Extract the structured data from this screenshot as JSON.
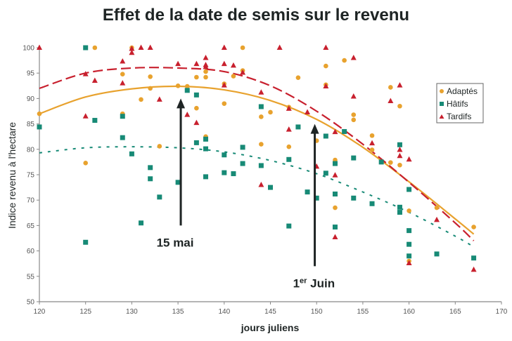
{
  "chart_data": {
    "type": "scatter",
    "title": "Effet de la date de semis sur le revenu",
    "xlabel": "jours juliens",
    "ylabel": "Indice revenu à l'hectare",
    "xlim": [
      120,
      170
    ],
    "ylim": [
      50,
      100
    ],
    "xticks": [
      "120",
      "125",
      "130",
      "135",
      "140",
      "145",
      "150",
      "155",
      "160",
      "165",
      "170"
    ],
    "yticks": [
      "50",
      "55",
      "60",
      "65",
      "70",
      "75",
      "80",
      "85",
      "90",
      "95",
      "100"
    ],
    "grid": false,
    "legend_position": "right",
    "series": [
      {
        "name": "Adaptés",
        "marker": "circle",
        "color": "#e8a22e",
        "points": [
          [
            120,
            87
          ],
          [
            125,
            77.3
          ],
          [
            126,
            100
          ],
          [
            129,
            87
          ],
          [
            129,
            94.8
          ],
          [
            130,
            100
          ],
          [
            131,
            89.8
          ],
          [
            132,
            94.3
          ],
          [
            132,
            92
          ],
          [
            133,
            80.6
          ],
          [
            135,
            92.5
          ],
          [
            136,
            92.4
          ],
          [
            137,
            88.1
          ],
          [
            137,
            94.2
          ],
          [
            138,
            82.5
          ],
          [
            138,
            94.2
          ],
          [
            138,
            95.3
          ],
          [
            140,
            89
          ],
          [
            140,
            92.9
          ],
          [
            141,
            94.4
          ],
          [
            142,
            100
          ],
          [
            142,
            95.5
          ],
          [
            144,
            81
          ],
          [
            144,
            86.4
          ],
          [
            145,
            87.3
          ],
          [
            147,
            80.5
          ],
          [
            147,
            88.3
          ],
          [
            148,
            94.1
          ],
          [
            150,
            81.7
          ],
          [
            151,
            92.7
          ],
          [
            151,
            96.4
          ],
          [
            152,
            77.9
          ],
          [
            152,
            68.5
          ],
          [
            153,
            97.5
          ],
          [
            154,
            85.8
          ],
          [
            154,
            86.8
          ],
          [
            156,
            79.9
          ],
          [
            156,
            82.7
          ],
          [
            158,
            92.2
          ],
          [
            158,
            77.4
          ],
          [
            159,
            88.5
          ],
          [
            159,
            76.9
          ],
          [
            160,
            67.9
          ],
          [
            160,
            58
          ],
          [
            163,
            68.5
          ],
          [
            167,
            64.7
          ]
        ]
      },
      {
        "name": "Hâtifs",
        "marker": "square",
        "color": "#178a76",
        "points": [
          [
            120,
            84.4
          ],
          [
            125,
            100
          ],
          [
            125,
            61.7
          ],
          [
            126,
            85.7
          ],
          [
            129,
            86.5
          ],
          [
            129,
            82.3
          ],
          [
            130,
            79.1
          ],
          [
            131,
            65.5
          ],
          [
            132,
            76.4
          ],
          [
            132,
            74.2
          ],
          [
            133,
            70.6
          ],
          [
            135,
            73.5
          ],
          [
            136,
            91.6
          ],
          [
            137,
            90.7
          ],
          [
            137,
            81.3
          ],
          [
            138,
            82
          ],
          [
            138,
            80.1
          ],
          [
            138,
            74.6
          ],
          [
            140,
            78.9
          ],
          [
            140,
            75.4
          ],
          [
            141,
            75.2
          ],
          [
            142,
            80.4
          ],
          [
            142,
            77.2
          ],
          [
            144,
            88.4
          ],
          [
            144,
            76.8
          ],
          [
            145,
            72.5
          ],
          [
            147,
            78
          ],
          [
            147,
            64.9
          ],
          [
            148,
            84.4
          ],
          [
            149,
            71.6
          ],
          [
            150,
            70.4
          ],
          [
            151,
            75.3
          ],
          [
            151,
            82.6
          ],
          [
            152,
            77.2
          ],
          [
            152,
            71.2
          ],
          [
            152,
            64.7
          ],
          [
            153,
            83.5
          ],
          [
            154,
            70.4
          ],
          [
            154,
            78.3
          ],
          [
            156,
            69.3
          ],
          [
            157,
            77.5
          ],
          [
            159,
            80.9
          ],
          [
            159,
            68.6
          ],
          [
            159,
            67.6
          ],
          [
            160,
            72.1
          ],
          [
            160,
            64
          ],
          [
            160,
            61.3
          ],
          [
            160,
            59
          ],
          [
            163,
            59.4
          ],
          [
            167,
            58.6
          ]
        ]
      },
      {
        "name": "Tardifs",
        "marker": "triangle",
        "color": "#c8202e",
        "points": [
          [
            120,
            100
          ],
          [
            125,
            94.8
          ],
          [
            125,
            86.5
          ],
          [
            126,
            93.5
          ],
          [
            129,
            97.3
          ],
          [
            129,
            93
          ],
          [
            130,
            99
          ],
          [
            130,
            99.8
          ],
          [
            131,
            100
          ],
          [
            132,
            100
          ],
          [
            133,
            89.8
          ],
          [
            135,
            96.8
          ],
          [
            136,
            86.8
          ],
          [
            137,
            85.2
          ],
          [
            137,
            96.8
          ],
          [
            138,
            96.6
          ],
          [
            138,
            96.2
          ],
          [
            138,
            98
          ],
          [
            140,
            100
          ],
          [
            140,
            96.8
          ],
          [
            140,
            92.6
          ],
          [
            141,
            96.5
          ],
          [
            142,
            95.1
          ],
          [
            144,
            91.2
          ],
          [
            144,
            73
          ],
          [
            146,
            100
          ],
          [
            147,
            88
          ],
          [
            147,
            83.9
          ],
          [
            149,
            87.3
          ],
          [
            150,
            76.6
          ],
          [
            151,
            100
          ],
          [
            151,
            92.4
          ],
          [
            152,
            62.7
          ],
          [
            152,
            74.9
          ],
          [
            152,
            83.4
          ],
          [
            154,
            98
          ],
          [
            154,
            90.4
          ],
          [
            156,
            81.2
          ],
          [
            158,
            89.5
          ],
          [
            159,
            92.6
          ],
          [
            159,
            78.7
          ],
          [
            159,
            79.9
          ],
          [
            160,
            78
          ],
          [
            160,
            57.6
          ],
          [
            163,
            66.1
          ],
          [
            167,
            56.3
          ]
        ]
      }
    ],
    "trendlines": [
      {
        "name": "Adaptés",
        "style": "solid",
        "color": "#e8a22e",
        "x": [
          120,
          125,
          130,
          135,
          140,
          145,
          150,
          155,
          160,
          165,
          167
        ],
        "y": [
          87,
          90.3,
          91.9,
          92.4,
          91.7,
          89.6,
          85.9,
          80.4,
          73.6,
          66.3,
          63.3
        ]
      },
      {
        "name": "Hâtifs",
        "style": "dotted",
        "color": "#178a76",
        "x": [
          120,
          125,
          130,
          135,
          140,
          145,
          150,
          155,
          160,
          165,
          167
        ],
        "y": [
          79.3,
          80.3,
          80.5,
          80.3,
          79.5,
          77.8,
          75.2,
          71.6,
          67.6,
          62.9,
          60.8
        ]
      },
      {
        "name": "Tardifs",
        "style": "dashed",
        "color": "#c8202e",
        "x": [
          120,
          125,
          130,
          135,
          140,
          145,
          150,
          155,
          160,
          165,
          167
        ],
        "y": [
          92,
          95,
          96,
          96,
          95.3,
          92.5,
          87.5,
          81,
          73.5,
          65.5,
          62
        ]
      }
    ],
    "annotations": [
      {
        "text": "15 mai",
        "arrow_x": 135.3,
        "arrow_y_from": 65,
        "arrow_y_to": 90
      },
      {
        "text_main": "1",
        "text_sup": "er",
        "text_rest": " Juin",
        "arrow_x": 149.8,
        "arrow_y_from": 57,
        "arrow_y_to": 85
      }
    ]
  },
  "legend": {
    "items": [
      "Adaptés",
      "Hâtifs",
      "Tardifs"
    ]
  }
}
